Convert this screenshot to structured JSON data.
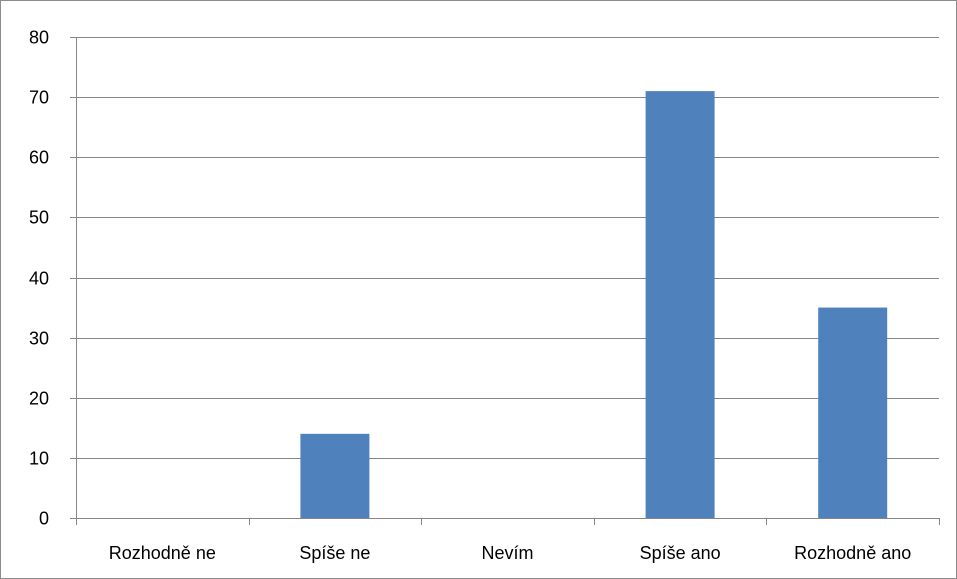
{
  "chart_data": {
    "type": "bar",
    "title": "",
    "xlabel": "",
    "ylabel": "",
    "categories": [
      "Rozhodně ne",
      "Spíše ne",
      "Nevím",
      "Spíše ano",
      "Rozhodně ano"
    ],
    "values": [
      0,
      14,
      0,
      71,
      35
    ],
    "ylim": [
      0,
      80
    ],
    "yticks": [
      "0",
      "10",
      "20",
      "30",
      "40",
      "50",
      "60",
      "70",
      "80"
    ],
    "grid": true,
    "legend": "none",
    "bar_color": "#4f81bd",
    "grid_color": "#868686"
  }
}
